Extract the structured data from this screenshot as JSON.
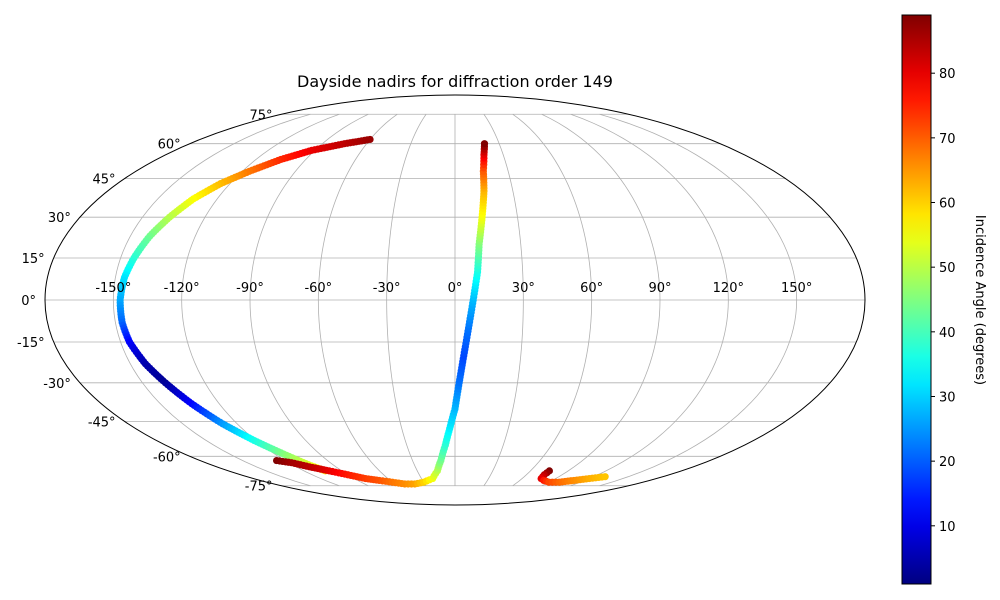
{
  "chart_data": {
    "type": "scatter",
    "projection": "mollweide",
    "title": "Dayside nadirs for diffraction order 149",
    "grid": true,
    "x_range": [
      -180,
      180
    ],
    "y_range": [
      -90,
      90
    ],
    "longitude_ticks": [
      "-150°",
      "-120°",
      "-90°",
      "-60°",
      "-30°",
      "0°",
      "30°",
      "60°",
      "90°",
      "120°",
      "150°"
    ],
    "latitude_ticks": [
      "75°",
      "60°",
      "45°",
      "30°",
      "15°",
      "0°",
      "-15°",
      "-30°",
      "-45°",
      "-60°",
      "-75°"
    ],
    "colorbar": {
      "label": "Incidence Angle (degrees)",
      "colormap": "jet",
      "range": [
        1,
        89
      ],
      "ticks": [
        "10",
        "20",
        "30",
        "40",
        "50",
        "60",
        "70",
        "80"
      ]
    },
    "series": [
      {
        "points": [
          {
            "lon": -60,
            "lat": 62,
            "c": 87
          },
          {
            "lon": -75,
            "lat": 60,
            "c": 84
          },
          {
            "lon": -92,
            "lat": 57,
            "c": 80
          },
          {
            "lon": -105,
            "lat": 53,
            "c": 75
          },
          {
            "lon": -116,
            "lat": 48,
            "c": 68
          },
          {
            "lon": -125,
            "lat": 43,
            "c": 62
          },
          {
            "lon": -132,
            "lat": 37,
            "c": 56
          },
          {
            "lon": -137,
            "lat": 30,
            "c": 50
          },
          {
            "lon": -141,
            "lat": 23,
            "c": 44
          },
          {
            "lon": -144,
            "lat": 15,
            "c": 38
          },
          {
            "lon": -146,
            "lat": 8,
            "c": 32
          },
          {
            "lon": -147,
            "lat": 0,
            "c": 27
          },
          {
            "lon": -147,
            "lat": -8,
            "c": 21
          },
          {
            "lon": -146,
            "lat": -15,
            "c": 12
          },
          {
            "lon": -143,
            "lat": -23,
            "c": 5
          },
          {
            "lon": -139,
            "lat": -30,
            "c": 3
          },
          {
            "lon": -134,
            "lat": -38,
            "c": 12
          },
          {
            "lon": -128,
            "lat": -46,
            "c": 25
          },
          {
            "lon": -121,
            "lat": -53,
            "c": 36
          },
          {
            "lon": -114,
            "lat": -59,
            "c": 45
          },
          {
            "lon": -108,
            "lat": -64,
            "c": 53
          },
          {
            "lon": -103,
            "lat": -67,
            "c": 58
          }
        ]
      },
      {
        "points": [
          {
            "lon": -126,
            "lat": -62,
            "c": 89
          },
          {
            "lon": -118,
            "lat": -63,
            "c": 86
          },
          {
            "lon": -110,
            "lat": -65,
            "c": 84
          },
          {
            "lon": -100,
            "lat": -67,
            "c": 80
          },
          {
            "lon": -90,
            "lat": -69,
            "c": 76
          },
          {
            "lon": -80,
            "lat": -71,
            "c": 73
          },
          {
            "lon": -70,
            "lat": -72,
            "c": 71
          },
          {
            "lon": -60,
            "lat": -73,
            "c": 68
          },
          {
            "lon": -50,
            "lat": -74,
            "c": 66
          },
          {
            "lon": -40,
            "lat": -74,
            "c": 64
          },
          {
            "lon": -30,
            "lat": -73,
            "c": 60
          },
          {
            "lon": -20,
            "lat": -71,
            "c": 55
          },
          {
            "lon": -14,
            "lat": -67,
            "c": 50
          },
          {
            "lon": -10,
            "lat": -62,
            "c": 44
          },
          {
            "lon": -6,
            "lat": -55,
            "c": 38
          },
          {
            "lon": -3,
            "lat": -48,
            "c": 33
          },
          {
            "lon": 0,
            "lat": -40,
            "c": 28
          },
          {
            "lon": 2,
            "lat": -30,
            "c": 22
          },
          {
            "lon": 4,
            "lat": -20,
            "c": 18
          },
          {
            "lon": 6,
            "lat": -10,
            "c": 22
          },
          {
            "lon": 8,
            "lat": 0,
            "c": 28
          },
          {
            "lon": 10,
            "lat": 10,
            "c": 36
          },
          {
            "lon": 11,
            "lat": 20,
            "c": 45
          },
          {
            "lon": 13,
            "lat": 30,
            "c": 55
          },
          {
            "lon": 15,
            "lat": 40,
            "c": 62
          },
          {
            "lon": 16,
            "lat": 48,
            "c": 70
          },
          {
            "lon": 18,
            "lat": 55,
            "c": 80
          },
          {
            "lon": 20,
            "lat": 60,
            "c": 89
          }
        ]
      },
      {
        "points": [
          {
            "lon": 75,
            "lat": -67,
            "c": 89
          },
          {
            "lon": 75,
            "lat": -69,
            "c": 84
          },
          {
            "lon": 77,
            "lat": -71,
            "c": 80
          },
          {
            "lon": 82,
            "lat": -72,
            "c": 76
          },
          {
            "lon": 90,
            "lat": -73,
            "c": 72
          },
          {
            "lon": 100,
            "lat": -73,
            "c": 69
          },
          {
            "lon": 110,
            "lat": -72,
            "c": 66
          },
          {
            "lon": 120,
            "lat": -71,
            "c": 63
          },
          {
            "lon": 130,
            "lat": -70,
            "c": 61
          }
        ]
      }
    ]
  }
}
